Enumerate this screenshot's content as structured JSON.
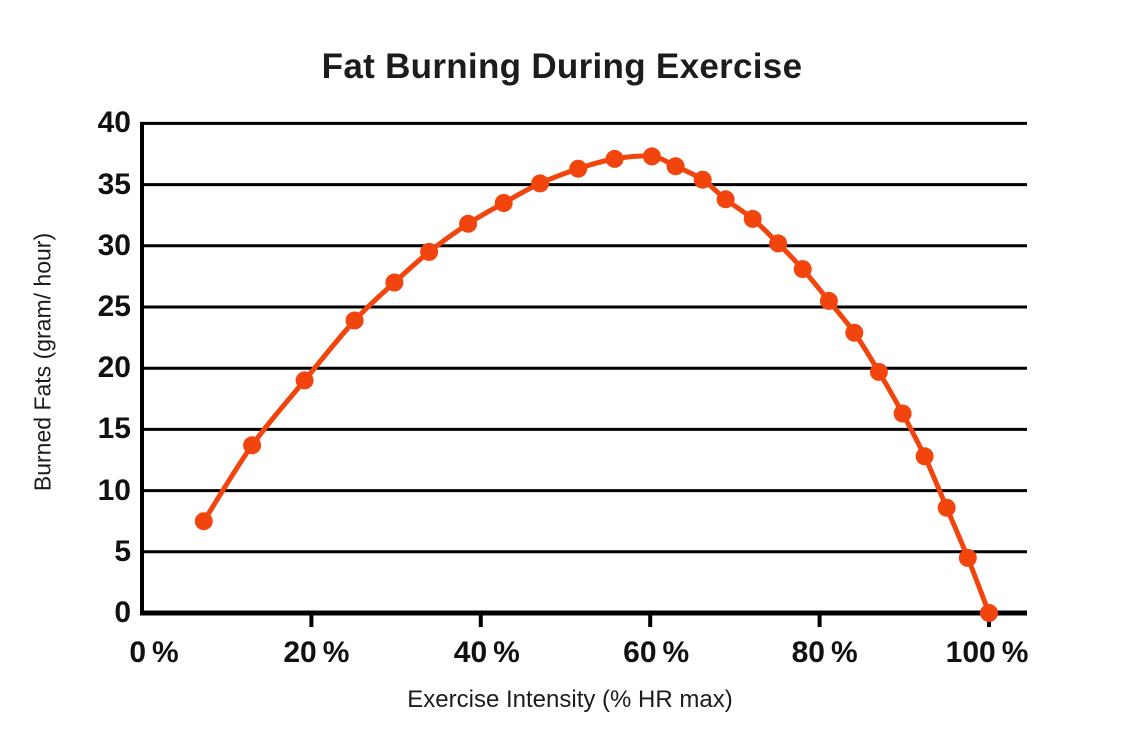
{
  "page": {
    "background": "#FFFFFF"
  },
  "colors": {
    "accent": "#F2440D",
    "axis": "#000000",
    "text": "#1C1C1C"
  },
  "chart_data": {
    "type": "line",
    "title": "Fat Burning During Exercise",
    "xlabel": "Exercise Intensity (% HR max)",
    "ylabel": "Burned Fats (gram/ hour)",
    "xlim": [
      0,
      100
    ],
    "ylim": [
      0,
      40
    ],
    "grid": "horizontal-only",
    "legend": "none",
    "x_tick_values": [
      0,
      20,
      40,
      60,
      80,
      100
    ],
    "x_tick_labels": [
      "0 %",
      "20 %",
      "40 %",
      "60 %",
      "80 %",
      "100 %"
    ],
    "y_tick_values": [
      0,
      5,
      10,
      15,
      20,
      25,
      30,
      35,
      40
    ],
    "y_tick_labels": [
      "0",
      "5",
      "10",
      "15",
      "20",
      "25",
      "30",
      "35",
      "40"
    ],
    "series": [
      {
        "name": "Burned fats",
        "color": "#F2440D",
        "marker": "circle",
        "points": [
          [
            7.3,
            7.5
          ],
          [
            13,
            13.7
          ],
          [
            19.2,
            19.0
          ],
          [
            25.1,
            23.9
          ],
          [
            29.8,
            27.0
          ],
          [
            33.9,
            29.5
          ],
          [
            38.5,
            31.8
          ],
          [
            42.7,
            33.5
          ],
          [
            47,
            35.1
          ],
          [
            51.5,
            36.3
          ],
          [
            55.8,
            37.1
          ],
          [
            60.2,
            37.3
          ],
          [
            63,
            36.5
          ],
          [
            66.2,
            35.4
          ],
          [
            68.9,
            33.8
          ],
          [
            72.1,
            32.2
          ],
          [
            75.1,
            30.2
          ],
          [
            78,
            28.1
          ],
          [
            81.1,
            25.5
          ],
          [
            84.1,
            22.9
          ],
          [
            87,
            19.7
          ],
          [
            89.8,
            16.3
          ],
          [
            92.4,
            12.8
          ],
          [
            95,
            8.6
          ],
          [
            97.5,
            4.5
          ],
          [
            100,
            0
          ]
        ]
      }
    ]
  }
}
